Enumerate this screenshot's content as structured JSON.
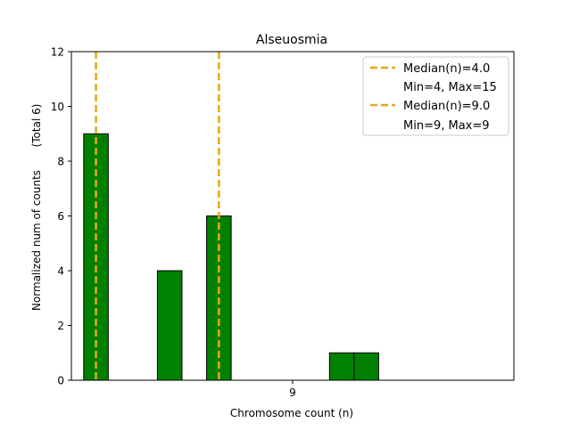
{
  "chart_data": {
    "type": "bar",
    "title": "Alseuosmia",
    "xlabel": "Chromosome count (n)",
    "ylabel": "Normalized num of counts",
    "ylabel_total": "(Total 6)",
    "xlim": [
      3.0,
      21.0
    ],
    "ylim": [
      0,
      12
    ],
    "yticks": [
      0,
      2,
      4,
      6,
      8,
      10,
      12
    ],
    "xticks": [
      {
        "value": 12,
        "label": "9"
      }
    ],
    "bar_width": 1,
    "bars": [
      {
        "x": 4,
        "value": 9
      },
      {
        "x": 7,
        "value": 4
      },
      {
        "x": 9,
        "value": 6
      },
      {
        "x": 14,
        "value": 1
      },
      {
        "x": 15,
        "value": 1
      }
    ],
    "medians": [
      {
        "x": 4,
        "label": "Median(n)=4.0",
        "range_label": "Min=4, Max=15"
      },
      {
        "x": 9,
        "label": "Median(n)=9.0",
        "range_label": "Min=9, Max=9"
      }
    ],
    "colors": {
      "bar": "#008000",
      "bar_edge": "#000000",
      "median": "#e6a817"
    },
    "legend_position": "upper-right"
  }
}
